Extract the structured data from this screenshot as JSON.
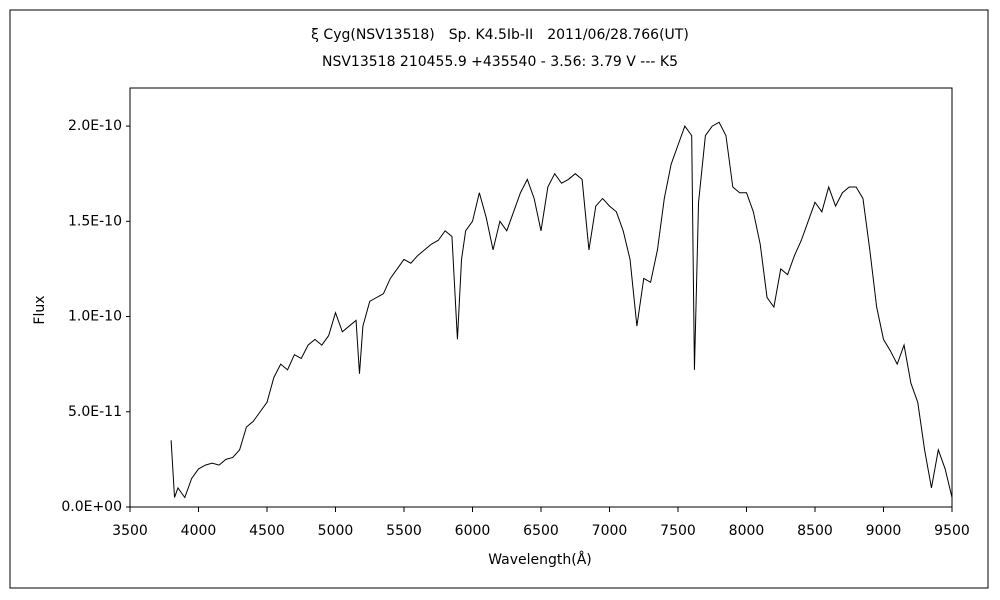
{
  "chart_data": {
    "type": "line",
    "title": "ξ Cyg(NSV13518)　Sp. K4.5Ib-II　2011/06/28.766(UT)",
    "subtitle": "NSV13518 210455.9 +435540 - 3.56: 3.79 V --- K5",
    "x_label": "Wavelength(Å)",
    "y_label": "Flux",
    "xlim": [
      3500,
      9500
    ],
    "xticks": [
      3500,
      4000,
      4500,
      5000,
      5500,
      6000,
      6500,
      7000,
      7500,
      8000,
      8500,
      9000,
      9500
    ],
    "ylim": [
      0,
      2.2e-10
    ],
    "yticks": [
      {
        "value": 0,
        "label": "0.0E+00"
      },
      {
        "value": 5e-11,
        "label": "5.0E-11"
      },
      {
        "value": 1e-10,
        "label": "1.0E-10"
      },
      {
        "value": 1.5e-10,
        "label": "1.5E-10"
      },
      {
        "value": 2e-10,
        "label": "2.0E-10"
      }
    ],
    "grid": false,
    "series": [
      {
        "color": "#000000",
        "x": [
          3800,
          3825,
          3850,
          3900,
          3950,
          4000,
          4050,
          4100,
          4150,
          4200,
          4250,
          4300,
          4350,
          4400,
          4450,
          4500,
          4550,
          4600,
          4650,
          4700,
          4750,
          4800,
          4850,
          4900,
          4950,
          5000,
          5050,
          5100,
          5150,
          5175,
          5200,
          5250,
          5300,
          5350,
          5400,
          5450,
          5500,
          5550,
          5600,
          5650,
          5700,
          5750,
          5800,
          5850,
          5890,
          5920,
          5950,
          6000,
          6050,
          6100,
          6150,
          6200,
          6250,
          6300,
          6350,
          6400,
          6450,
          6500,
          6550,
          6600,
          6650,
          6700,
          6750,
          6800,
          6850,
          6900,
          6950,
          7000,
          7050,
          7100,
          7150,
          7200,
          7250,
          7300,
          7350,
          7400,
          7450,
          7500,
          7550,
          7600,
          7620,
          7650,
          7700,
          7750,
          7800,
          7850,
          7900,
          7950,
          8000,
          8050,
          8100,
          8150,
          8200,
          8250,
          8300,
          8350,
          8400,
          8450,
          8500,
          8550,
          8600,
          8650,
          8700,
          8750,
          8800,
          8850,
          8900,
          8950,
          9000,
          9050,
          9100,
          9150,
          9200,
          9250,
          9300,
          9350,
          9400,
          9450,
          9500
        ],
        "values": [
          3.5e-11,
          5e-12,
          1e-11,
          5e-12,
          1.5e-11,
          2e-11,
          2.2e-11,
          2.3e-11,
          2.2e-11,
          2.5e-11,
          2.6e-11,
          3e-11,
          4.2e-11,
          4.5e-11,
          5e-11,
          5.5e-11,
          6.8e-11,
          7.5e-11,
          7.2e-11,
          8e-11,
          7.8e-11,
          8.5e-11,
          8.8e-11,
          8.5e-11,
          9e-11,
          1.02e-10,
          9.2e-11,
          9.5e-11,
          9.8e-11,
          7e-11,
          9.5e-11,
          1.08e-10,
          1.1e-10,
          1.12e-10,
          1.2e-10,
          1.25e-10,
          1.3e-10,
          1.28e-10,
          1.32e-10,
          1.35e-10,
          1.38e-10,
          1.4e-10,
          1.45e-10,
          1.42e-10,
          8.8e-11,
          1.3e-10,
          1.45e-10,
          1.5e-10,
          1.65e-10,
          1.52e-10,
          1.35e-10,
          1.5e-10,
          1.45e-10,
          1.55e-10,
          1.65e-10,
          1.72e-10,
          1.62e-10,
          1.45e-10,
          1.68e-10,
          1.75e-10,
          1.7e-10,
          1.72e-10,
          1.75e-10,
          1.72e-10,
          1.35e-10,
          1.58e-10,
          1.62e-10,
          1.58e-10,
          1.55e-10,
          1.45e-10,
          1.3e-10,
          9.5e-11,
          1.2e-10,
          1.18e-10,
          1.35e-10,
          1.62e-10,
          1.8e-10,
          1.9e-10,
          2e-10,
          1.95e-10,
          7.2e-11,
          1.6e-10,
          1.95e-10,
          2e-10,
          2.02e-10,
          1.95e-10,
          1.68e-10,
          1.65e-10,
          1.65e-10,
          1.55e-10,
          1.38e-10,
          1.1e-10,
          1.05e-10,
          1.25e-10,
          1.22e-10,
          1.32e-10,
          1.4e-10,
          1.5e-10,
          1.6e-10,
          1.55e-10,
          1.68e-10,
          1.58e-10,
          1.65e-10,
          1.68e-10,
          1.68e-10,
          1.62e-10,
          1.35e-10,
          1.05e-10,
          8.8e-11,
          8.2e-11,
          7.5e-11,
          8.5e-11,
          6.5e-11,
          5.5e-11,
          3e-11,
          1e-11,
          3e-11,
          2e-11,
          5e-12
        ]
      }
    ]
  }
}
